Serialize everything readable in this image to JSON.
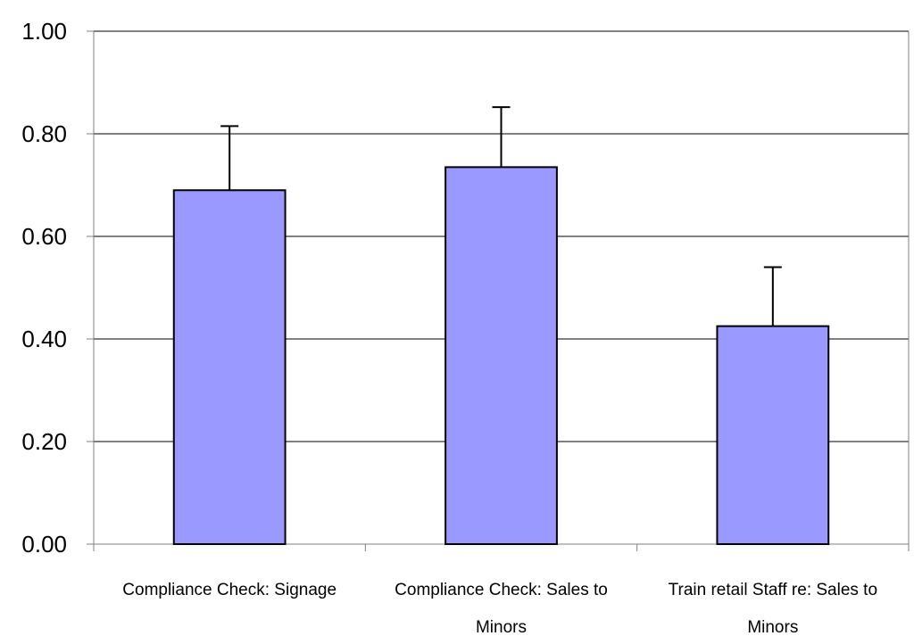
{
  "chart_data": {
    "type": "bar",
    "title": "",
    "xlabel": "",
    "ylabel": "",
    "ylim": [
      0,
      1.0
    ],
    "yticks": [
      0.0,
      0.2,
      0.4,
      0.6,
      0.8,
      1.0
    ],
    "ytick_labels": [
      "0.00",
      "0.20",
      "0.40",
      "0.60",
      "0.80",
      "1.00"
    ],
    "grid": true,
    "categories": [
      [
        "Compliance Check: Signage"
      ],
      [
        "Compliance Check: Sales to",
        "Minors"
      ],
      [
        "Train retail Staff re: Sales to",
        "Minors"
      ]
    ],
    "values": [
      0.69,
      0.735,
      0.425
    ],
    "error_upper": [
      0.815,
      0.852,
      0.54
    ],
    "colors": {
      "bar": "#9999ff",
      "bar_edge": "#000000",
      "grid": "#000000",
      "axis": "#808080"
    }
  }
}
